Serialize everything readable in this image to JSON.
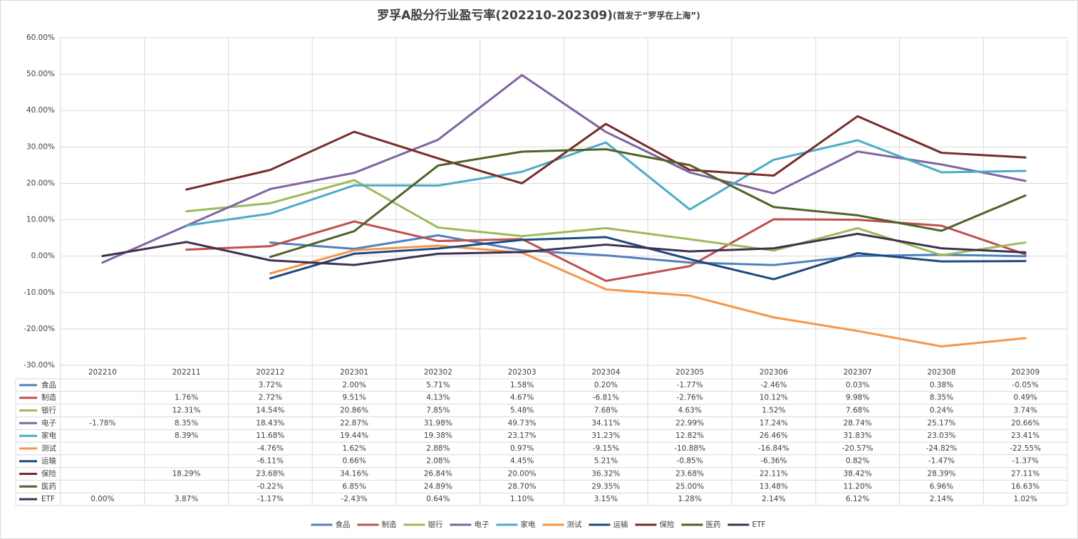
{
  "chart_data": {
    "type": "line",
    "title": "罗孚A股分行业盈亏率(202210-202309)",
    "subtitle": "(首发于”罗孚在上海”)",
    "categories": [
      "202210",
      "202211",
      "202212",
      "202301",
      "202302",
      "202303",
      "202304",
      "202305",
      "202306",
      "202307",
      "202308",
      "202309"
    ],
    "ylim": [
      -30,
      60
    ],
    "yticks": [
      {
        "value": -30,
        "label": "-30.00%"
      },
      {
        "value": -20,
        "label": "-20.00%"
      },
      {
        "value": -10,
        "label": "-10.00%"
      },
      {
        "value": 0,
        "label": "0.00%"
      },
      {
        "value": 10,
        "label": "10.00%"
      },
      {
        "value": 20,
        "label": "20.00%"
      },
      {
        "value": 30,
        "label": "30.00%"
      },
      {
        "value": 40,
        "label": "40.00%"
      },
      {
        "value": 50,
        "label": "50.00%"
      },
      {
        "value": 60,
        "label": "60.00%"
      }
    ],
    "grid": true,
    "legend": "bottom",
    "series": [
      {
        "name": "食品",
        "color": "#4f81bd",
        "values": [
          null,
          null,
          3.72,
          2.0,
          5.71,
          1.58,
          0.2,
          -1.77,
          -2.46,
          0.03,
          0.38,
          -0.05
        ],
        "value_labels": [
          null,
          null,
          "3.72%",
          "2.00%",
          "5.71%",
          "1.58%",
          "0.20%",
          "-1.77%",
          "-2.46%",
          "0.03%",
          "0.38%",
          "-0.05%"
        ]
      },
      {
        "name": "制造",
        "color": "#c0504d",
        "values": [
          null,
          1.76,
          2.72,
          9.51,
          4.13,
          4.67,
          -6.81,
          -2.76,
          10.12,
          9.98,
          8.35,
          0.49
        ],
        "value_labels": [
          null,
          "1.76%",
          "2.72%",
          "9.51%",
          "4.13%",
          "4.67%",
          "-6.81%",
          "-2.76%",
          "10.12%",
          "9.98%",
          "8.35%",
          "0.49%"
        ]
      },
      {
        "name": "银行",
        "color": "#9bbb59",
        "values": [
          null,
          12.31,
          14.54,
          20.86,
          7.85,
          5.48,
          7.68,
          4.63,
          1.52,
          7.68,
          0.24,
          3.74
        ],
        "value_labels": [
          null,
          "12.31%",
          "14.54%",
          "20.86%",
          "7.85%",
          "5.48%",
          "7.68%",
          "4.63%",
          "1.52%",
          "7.68%",
          "0.24%",
          "3.74%"
        ]
      },
      {
        "name": "电子",
        "color": "#8064a2",
        "values": [
          -1.78,
          8.35,
          18.43,
          22.87,
          31.98,
          49.73,
          34.11,
          22.99,
          17.24,
          28.74,
          25.17,
          20.66
        ],
        "value_labels": [
          "-1.78%",
          "8.35%",
          "18.43%",
          "22.87%",
          "31.98%",
          "49.73%",
          "34.11%",
          "22.99%",
          "17.24%",
          "28.74%",
          "25.17%",
          "20.66%"
        ]
      },
      {
        "name": "家电",
        "color": "#4bacc6",
        "values": [
          null,
          8.39,
          11.68,
          19.44,
          19.38,
          23.17,
          31.23,
          12.82,
          26.46,
          31.83,
          23.03,
          23.41
        ],
        "value_labels": [
          null,
          "8.39%",
          "11.68%",
          "19.44%",
          "19.38%",
          "23.17%",
          "31.23%",
          "12.82%",
          "26.46%",
          "31.83%",
          "23.03%",
          "23.41%"
        ]
      },
      {
        "name": "测试",
        "color": "#f79646",
        "values": [
          null,
          null,
          -4.76,
          1.62,
          2.88,
          0.97,
          -9.15,
          -10.88,
          -16.84,
          -20.57,
          -24.82,
          -22.55
        ],
        "value_labels": [
          null,
          null,
          "-4.76%",
          "1.62%",
          "2.88%",
          "0.97%",
          "-9.15%",
          "-10.88%",
          "-16.84%",
          "-20.57%",
          "-24.82%",
          "-22.55%"
        ]
      },
      {
        "name": "运输",
        "color": "#1f497d",
        "values": [
          null,
          null,
          -6.11,
          0.66,
          2.08,
          4.45,
          5.21,
          -0.85,
          -6.36,
          0.82,
          -1.47,
          -1.37
        ],
        "value_labels": [
          null,
          null,
          "-6.11%",
          "0.66%",
          "2.08%",
          "4.45%",
          "5.21%",
          "-0.85%",
          "-6.36%",
          "0.82%",
          "-1.47%",
          "-1.37%"
        ]
      },
      {
        "name": "保险",
        "color": "#772c2a",
        "values": [
          null,
          18.29,
          23.68,
          34.16,
          26.84,
          20.0,
          36.32,
          23.68,
          22.11,
          38.42,
          28.39,
          27.11
        ],
        "value_labels": [
          null,
          "18.29%",
          "23.68%",
          "34.16%",
          "26.84%",
          "20.00%",
          "36.32%",
          "23.68%",
          "22.11%",
          "38.42%",
          "28.39%",
          "27.11%"
        ]
      },
      {
        "name": "医药",
        "color": "#4f6228",
        "values": [
          null,
          null,
          -0.22,
          6.85,
          24.89,
          28.7,
          29.35,
          25.0,
          13.48,
          11.2,
          6.96,
          16.63
        ],
        "value_labels": [
          null,
          null,
          "-0.22%",
          "6.85%",
          "24.89%",
          "28.70%",
          "29.35%",
          "25.00%",
          "13.48%",
          "11.20%",
          "6.96%",
          "16.63%"
        ]
      },
      {
        "name": "ETF",
        "color": "#3f3151",
        "values": [
          0.0,
          3.87,
          -1.17,
          -2.43,
          0.64,
          1.1,
          3.15,
          1.28,
          2.14,
          6.12,
          2.14,
          1.02
        ],
        "value_labels": [
          "0.00%",
          "3.87%",
          "-1.17%",
          "-2.43%",
          "0.64%",
          "1.10%",
          "3.15%",
          "1.28%",
          "2.14%",
          "6.12%",
          "2.14%",
          "1.02%"
        ]
      }
    ]
  }
}
